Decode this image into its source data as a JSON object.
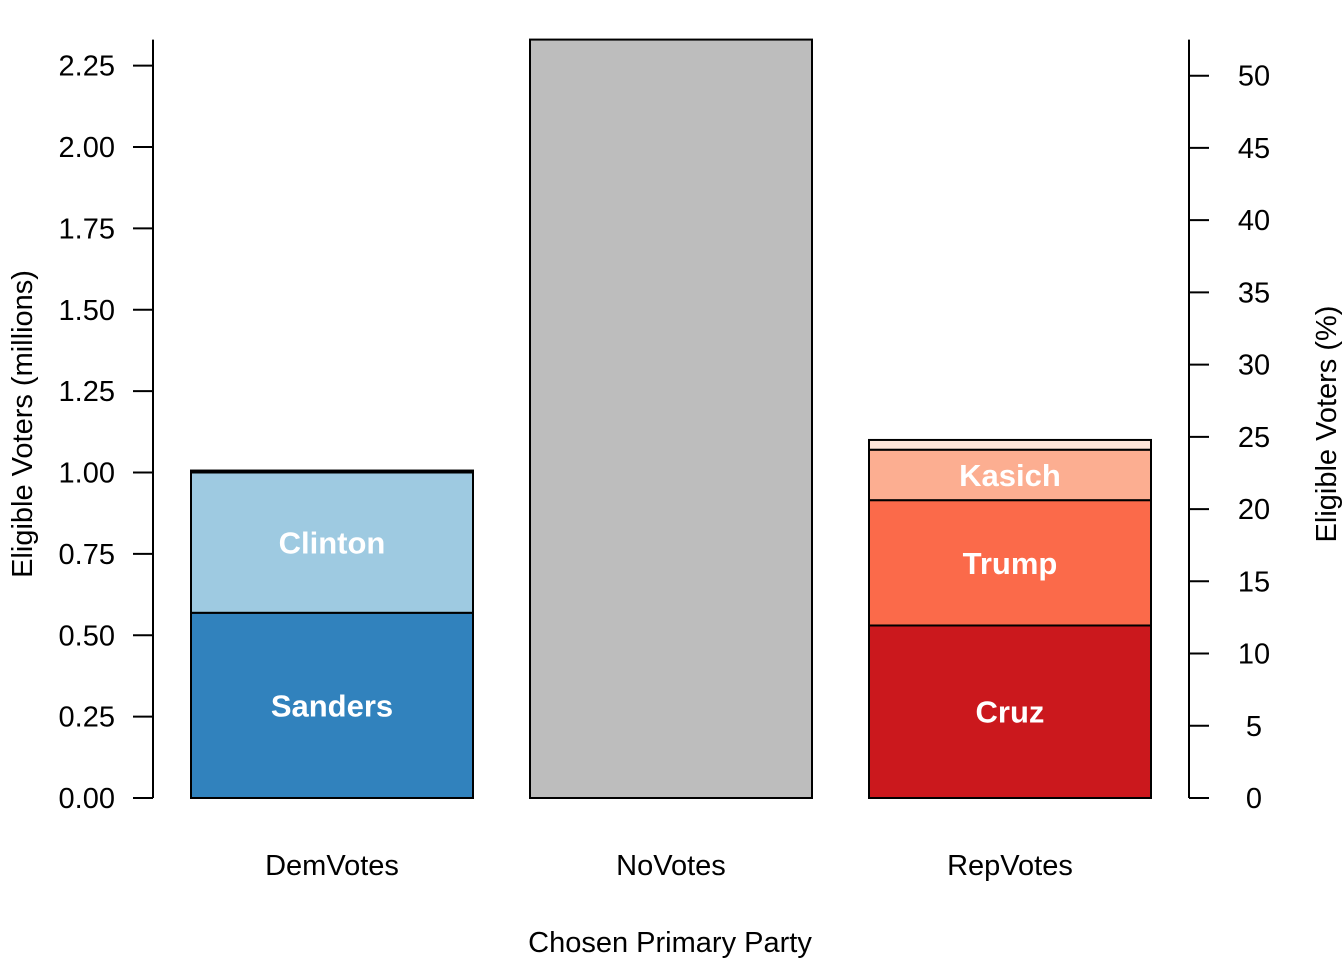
{
  "chart_data": {
    "type": "bar",
    "stacked": true,
    "title": "",
    "xlabel": "Chosen Primary Party",
    "ylabel": "Eligible Voters  (millions)",
    "y2label": "Eligible Voters  (%)",
    "categories": [
      "DemVotes",
      "NoVotes",
      "RepVotes"
    ],
    "ylim": [
      0,
      2.33
    ],
    "y2lim": [
      0,
      52.5
    ],
    "yticks": [
      0.0,
      0.25,
      0.5,
      0.75,
      1.0,
      1.25,
      1.5,
      1.75,
      2.0,
      2.25
    ],
    "ytick_labels": [
      "0.00",
      "0.25",
      "0.50",
      "0.75",
      "1.00",
      "1.25",
      "1.50",
      "1.75",
      "2.00",
      "2.25"
    ],
    "y2ticks": [
      0,
      5,
      10,
      15,
      20,
      25,
      30,
      35,
      40,
      45,
      50
    ],
    "y2tick_labels": [
      "0",
      "5",
      "10",
      "15",
      "20",
      "25",
      "30",
      "35",
      "40",
      "45",
      "50"
    ],
    "grid": false,
    "legend": "none",
    "stacks": [
      {
        "category": "DemVotes",
        "segments": [
          {
            "label": "Sanders",
            "value": 0.569,
            "color": "#3182bd"
          },
          {
            "label": "Clinton",
            "value": 0.431,
            "color": "#9ecae1"
          },
          {
            "label": "",
            "value": 0.006,
            "color": "#c6dbef"
          }
        ]
      },
      {
        "category": "NoVotes",
        "segments": [
          {
            "label": "",
            "value": 2.33,
            "color": "#bdbdbd"
          }
        ]
      },
      {
        "category": "RepVotes",
        "segments": [
          {
            "label": "Cruz",
            "value": 0.53,
            "color": "#cb181d"
          },
          {
            "label": "Trump",
            "value": 0.385,
            "color": "#fb6a4a"
          },
          {
            "label": "Kasich",
            "value": 0.155,
            "color": "#fcae91"
          },
          {
            "label": "",
            "value": 0.03,
            "color": "#fee5d9"
          }
        ]
      }
    ]
  }
}
